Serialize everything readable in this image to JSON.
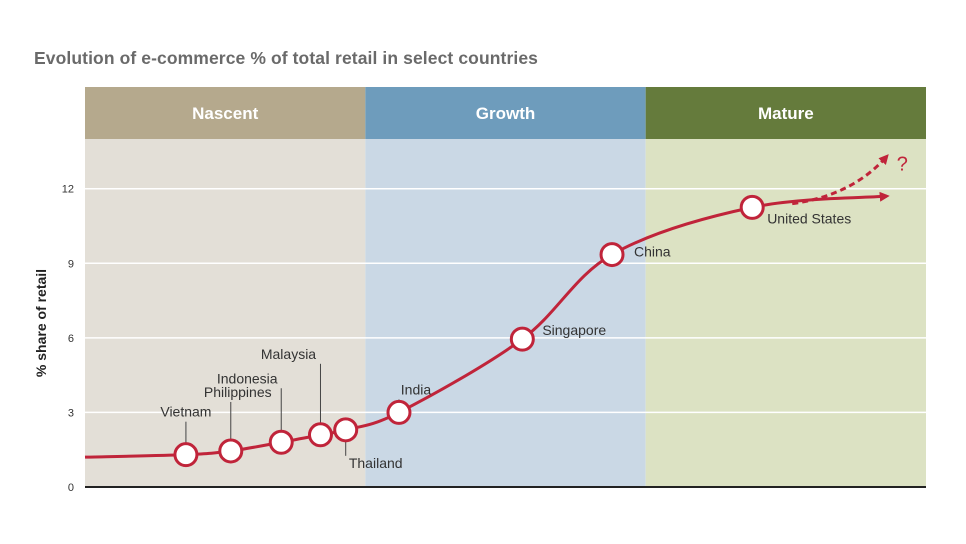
{
  "title": "Evolution of e-commerce % of total retail in select countries",
  "chart_data": {
    "type": "line",
    "title": "Evolution of e-commerce % of total retail in select countries",
    "xlabel": "",
    "ylabel": "% share of retail",
    "ylim": [
      0,
      14
    ],
    "yticks": [
      0,
      3,
      6,
      9,
      12
    ],
    "grid": true,
    "stages": [
      {
        "name": "Nascent",
        "color": "#b5a98d",
        "bg": "#e3dfd7"
      },
      {
        "name": "Growth",
        "color": "#6e9cbc",
        "bg": "#cad8e5"
      },
      {
        "name": "Mature",
        "color": "#657b3c",
        "bg": "#dce2c3"
      }
    ],
    "points": [
      {
        "country": "Vietnam",
        "stage_pos": 0.36,
        "value": 1.3
      },
      {
        "country": "Philippines",
        "stage_pos": 0.52,
        "value": 1.45
      },
      {
        "country": "Indonesia",
        "stage_pos": 0.7,
        "value": 1.8
      },
      {
        "country": "Malaysia",
        "stage_pos": 0.84,
        "value": 2.1
      },
      {
        "country": "Thailand",
        "stage_pos": 0.93,
        "value": 2.3
      },
      {
        "country": "India",
        "stage_pos": 1.12,
        "value": 3.0
      },
      {
        "country": "Singapore",
        "stage_pos": 1.56,
        "value": 5.95
      },
      {
        "country": "China",
        "stage_pos": 1.88,
        "value": 9.35
      },
      {
        "country": "United States",
        "stage_pos": 2.38,
        "value": 11.25
      }
    ],
    "trend_end": {
      "stage_pos": 2.86,
      "value": 11.7
    },
    "projection": {
      "label": "?",
      "end_stage_pos": 2.86,
      "end_value": 13.3
    },
    "colors": {
      "line": "#c0243a",
      "marker_fill": "#ffffff",
      "axis": "#222222",
      "grid": "#ffffff"
    }
  }
}
